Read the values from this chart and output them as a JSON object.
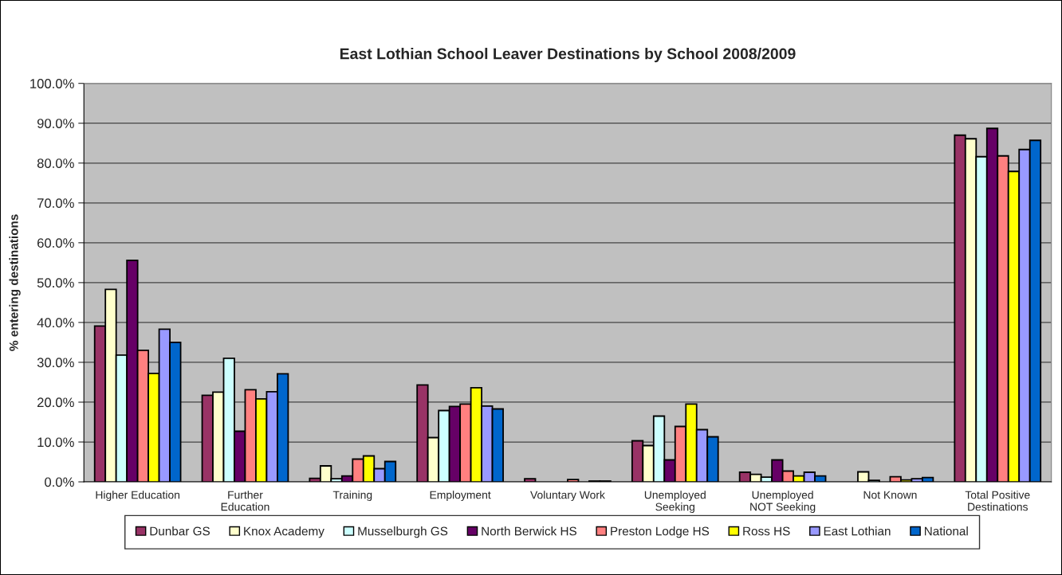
{
  "chart_data": {
    "type": "bar",
    "title": "East Lothian School Leaver Destinations by School 2008/2009",
    "ylabel": "% entering destinations",
    "categories": [
      "Higher Education",
      "Further\nEducation",
      "Training",
      "Employment",
      "Voluntary Work",
      "Unemployed\nSeeking",
      "Unemployed\nNOT Seeking",
      "Not Known",
      "Total Positive\nDestinations"
    ],
    "series": [
      {
        "name": "Dunbar GS",
        "color": "#993366",
        "values": [
          39.1,
          21.7,
          0.9,
          24.3,
          0.8,
          10.3,
          2.4,
          0,
          87.0
        ]
      },
      {
        "name": "Knox Academy",
        "color": "#ffffcc",
        "values": [
          48.3,
          22.5,
          4.0,
          11.1,
          0,
          9.1,
          1.9,
          2.5,
          86.1
        ]
      },
      {
        "name": "Musselburgh GS",
        "color": "#ccffff",
        "values": [
          31.8,
          31.0,
          0.8,
          17.9,
          0,
          16.5,
          1.2,
          0.4,
          81.6
        ]
      },
      {
        "name": "North Berwick HS",
        "color": "#660066",
        "values": [
          55.6,
          12.7,
          1.5,
          18.9,
          0,
          5.5,
          5.5,
          0,
          88.7
        ]
      },
      {
        "name": "Preston Lodge HS",
        "color": "#ff8080",
        "values": [
          33.0,
          23.1,
          5.7,
          19.5,
          0.6,
          13.9,
          2.7,
          1.3,
          81.8
        ]
      },
      {
        "name": "Ross HS",
        "color": "#ffff00",
        "values": [
          27.2,
          20.8,
          6.5,
          23.6,
          0,
          19.5,
          1.5,
          0.5,
          77.9
        ]
      },
      {
        "name": "East Lothian",
        "color": "#9999ff",
        "values": [
          38.3,
          22.6,
          3.3,
          19.0,
          0.2,
          13.1,
          2.4,
          0.8,
          83.4
        ]
      },
      {
        "name": "National",
        "color": "#0066cc",
        "values": [
          35.0,
          27.1,
          5.1,
          18.3,
          0.2,
          11.3,
          1.5,
          1.1,
          85.7
        ]
      }
    ],
    "ylim": [
      0,
      100
    ],
    "yticks": [
      {
        "value": 0,
        "label": "0.0%"
      },
      {
        "value": 10,
        "label": "10.0%"
      },
      {
        "value": 20,
        "label": "20.0%"
      },
      {
        "value": 30,
        "label": "30.0%"
      },
      {
        "value": 40,
        "label": "40.0%"
      },
      {
        "value": 50,
        "label": "50.0%"
      },
      {
        "value": 60,
        "label": "60.0%"
      },
      {
        "value": 70,
        "label": "70.0%"
      },
      {
        "value": 80,
        "label": "80.0%"
      },
      {
        "value": 90,
        "label": "90.0%"
      },
      {
        "value": 100,
        "label": "100.0%"
      }
    ],
    "grid": "y",
    "legend": "bottom"
  }
}
